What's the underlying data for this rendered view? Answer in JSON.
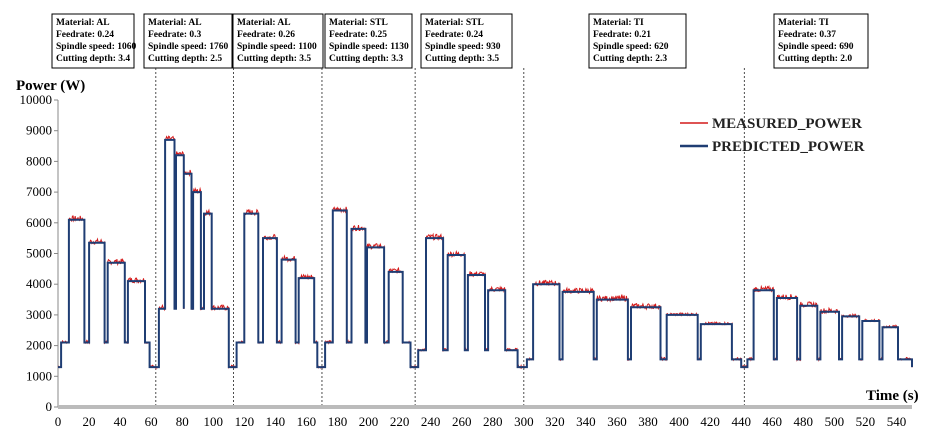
{
  "chart_data": {
    "type": "line",
    "ylabel": "Power (W)",
    "xlabel": "Time (s)",
    "xlim": [
      0,
      550
    ],
    "ylim": [
      0,
      10000
    ],
    "x_ticks": [
      0,
      20,
      40,
      60,
      80,
      100,
      120,
      140,
      160,
      180,
      200,
      220,
      240,
      260,
      280,
      300,
      320,
      340,
      360,
      380,
      400,
      420,
      440,
      460,
      480,
      500,
      520,
      540
    ],
    "y_ticks": [
      0,
      1000,
      2000,
      3000,
      4000,
      5000,
      6000,
      7000,
      8000,
      9000,
      10000
    ],
    "grid": false,
    "legend_position": "top-right",
    "colors": {
      "measured": "#d41a1a",
      "predicted": "#1f3d73"
    },
    "series": [
      {
        "name": "MEASURED_POWER",
        "noise": 180
      },
      {
        "name": "PREDICTED_POWER"
      }
    ],
    "section_dividers": [
      63,
      113,
      170,
      230,
      300,
      442
    ],
    "conditions": [
      {
        "lines": [
          "Material: AL",
          "Feedrate: 0.24",
          "Spindle speed: 1060",
          "Cutting depth: 3.4"
        ]
      },
      {
        "lines": [
          "Material: AL",
          "Feedrate: 0.3",
          "Spindle speed: 1760",
          "Cutting depth: 2.5"
        ]
      },
      {
        "lines": [
          "Material: AL",
          "Feedrate: 0.26",
          "Spindle speed: 1100",
          "Cutting depth: 3.5"
        ]
      },
      {
        "lines": [
          "Material: STL",
          "Feedrate: 0.25",
          "Spindle speed: 1130",
          "Cutting depth: 3.3"
        ]
      },
      {
        "lines": [
          "Material: STL",
          "Feedrate: 0.24",
          "Spindle speed: 930",
          "Cutting depth: 3.5"
        ]
      },
      {
        "lines": [
          "Material: TI",
          "Feedrate: 0.21",
          "Spindle speed: 620",
          "Cutting depth: 2.3"
        ]
      },
      {
        "lines": [
          "Material: TI",
          "Feedrate: 0.37",
          "Spindle speed: 690",
          "Cutting depth: 2.0"
        ]
      }
    ],
    "sections": [
      {
        "start": 0,
        "idle": 1300,
        "base": 2100,
        "pulses": [
          [
            7,
            17,
            6100
          ],
          [
            20,
            30,
            5350
          ],
          [
            32,
            43,
            4700
          ],
          [
            45,
            56,
            4100
          ]
        ],
        "end_base": 59,
        "end": 63
      },
      {
        "start": 63,
        "idle": 1300,
        "base": 3200,
        "pulses": [
          [
            69,
            75,
            8700
          ],
          [
            76,
            81,
            8200
          ],
          [
            81,
            86,
            7600
          ],
          [
            87,
            92,
            7000
          ],
          [
            94,
            99,
            6300
          ]
        ],
        "end_base": 110,
        "end": 113
      },
      {
        "start": 113,
        "idle": 1300,
        "base": 2100,
        "pulses": [
          [
            120,
            129,
            6300
          ],
          [
            132,
            141,
            5500
          ],
          [
            144,
            153,
            4800
          ],
          [
            155,
            165,
            4200
          ]
        ],
        "end_base": 167,
        "end": 170
      },
      {
        "start": 170,
        "idle": 1300,
        "base": 2100,
        "pulses": [
          [
            177,
            186,
            6400
          ],
          [
            189,
            198,
            5800
          ],
          [
            199,
            210,
            5200
          ],
          [
            213,
            222,
            4400
          ]
        ],
        "end_base": 227,
        "end": 230
      },
      {
        "start": 230,
        "idle": 1300,
        "base": 1850,
        "pulses": [
          [
            237,
            248,
            5500
          ],
          [
            251,
            262,
            4950
          ],
          [
            264,
            275,
            4300
          ],
          [
            277,
            288,
            3800
          ]
        ],
        "end_base": 296,
        "end": 300
      },
      {
        "start": 300,
        "idle": 1300,
        "base": 1550,
        "pulses": [
          [
            306,
            323,
            4000
          ],
          [
            325,
            345,
            3750
          ],
          [
            347,
            367,
            3500
          ],
          [
            369,
            388,
            3250
          ],
          [
            392,
            412,
            3000
          ],
          [
            414,
            434,
            2700
          ]
        ],
        "end_base": 440,
        "end": 442
      },
      {
        "start": 442,
        "idle": 1300,
        "base": 1550,
        "pulses": [
          [
            448,
            461,
            3800
          ],
          [
            463,
            476,
            3550
          ],
          [
            478,
            489,
            3300
          ],
          [
            491,
            503,
            3100
          ],
          [
            505,
            516,
            2950
          ],
          [
            518,
            529,
            2800
          ],
          [
            531,
            541,
            2600
          ]
        ],
        "end_base": 550,
        "end": 550
      }
    ]
  }
}
